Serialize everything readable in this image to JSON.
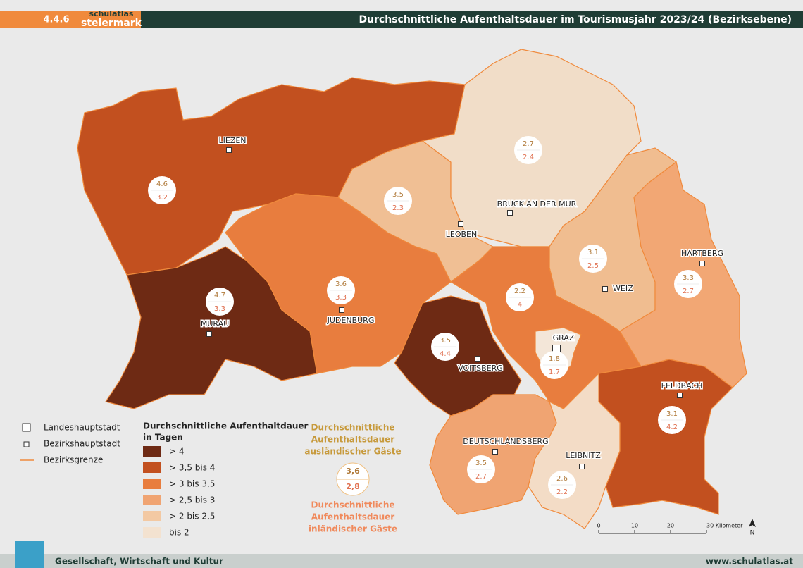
{
  "header": {
    "section": "4.4.6",
    "logo_top": "schulatlas",
    "logo_bottom": "steiermark",
    "title": "Durchschnittliche Aufenthaltsdauer im Tourismusjahr 2023/24 (Bezirksebene)"
  },
  "districts": [
    {
      "name": "LIEZEN",
      "foreign": 4.6,
      "domestic": 3.2,
      "color": "#c2501f"
    },
    {
      "name": "MURAU",
      "foreign": 4.7,
      "domestic": 3.3,
      "color": "#6e2a14"
    },
    {
      "name": "JUDENBURG",
      "foreign": 3.6,
      "domestic": 3.3,
      "color": "#e87d3e"
    },
    {
      "name": "LEOBEN",
      "foreign": 3.5,
      "domestic": 2.3,
      "color": "#f0bf94"
    },
    {
      "name": "BRUCK AN DER MUR",
      "foreign": 2.7,
      "domestic": 2.4,
      "color": "#f1ddc8"
    },
    {
      "name": "WEIZ",
      "foreign": 3.1,
      "domestic": 2.5,
      "color": "#f0bd90"
    },
    {
      "name": "HARTBERG",
      "foreign": 3.3,
      "domestic": 2.7,
      "color": "#f2a774"
    },
    {
      "name": null,
      "foreign": 2.2,
      "domestic": 4,
      "color": "#e87d3e"
    },
    {
      "name": "VOITSBERG",
      "foreign": 3.5,
      "domestic": 4.4,
      "color": "#6e2a14"
    },
    {
      "name": "GRAZ",
      "foreign": 1.8,
      "domestic": 1.7,
      "color": "#f3e6d8"
    },
    {
      "name": "FELDBACH",
      "foreign": 3.1,
      "domestic": 4.2,
      "color": "#c2501f"
    },
    {
      "name": "DEUTSCHLANDSBERG",
      "foreign": 3.5,
      "domestic": 2.7,
      "color": "#f0a472"
    },
    {
      "name": "LEIBNITZ",
      "foreign": 2.6,
      "domestic": 2.2,
      "color": "#f3dcc6"
    }
  ],
  "legend": {
    "symbols": [
      "Landeshauptstadt",
      "Bezirkshauptstadt",
      "Bezirksgrenze"
    ],
    "title": [
      "Durchschnittliche Aufenthaltdauer",
      "in Tagen"
    ],
    "classes": [
      {
        "label": "> 4",
        "color": "#6e2a14"
      },
      {
        "label": "> 3,5 bis 4",
        "color": "#c2501f"
      },
      {
        "label": "> 3 bis 3,5",
        "color": "#e87d3e"
      },
      {
        "label": "> 2,5 bis 3",
        "color": "#f0a472"
      },
      {
        "label": "> 2 bis 2,5",
        "color": "#f3c9a3"
      },
      {
        "label": "bis 2",
        "color": "#f3e2d0"
      }
    ],
    "foreign_text": [
      "Durchschnittliche",
      "Aufenthaltsdauer",
      "ausländischer Gäste"
    ],
    "sample_foreign": "3,6",
    "sample_domestic": "2,8",
    "domestic_text": [
      "Durchschnittliche",
      "Aufenthaltsdauer",
      "inländischer Gäste"
    ]
  },
  "scale": {
    "labels": [
      0,
      10,
      20,
      "30 Kilometer"
    ],
    "north": "N"
  },
  "footer": {
    "left": "Gesellschaft, Wirtschaft und Kultur",
    "right": "www.schulatlas.at"
  }
}
